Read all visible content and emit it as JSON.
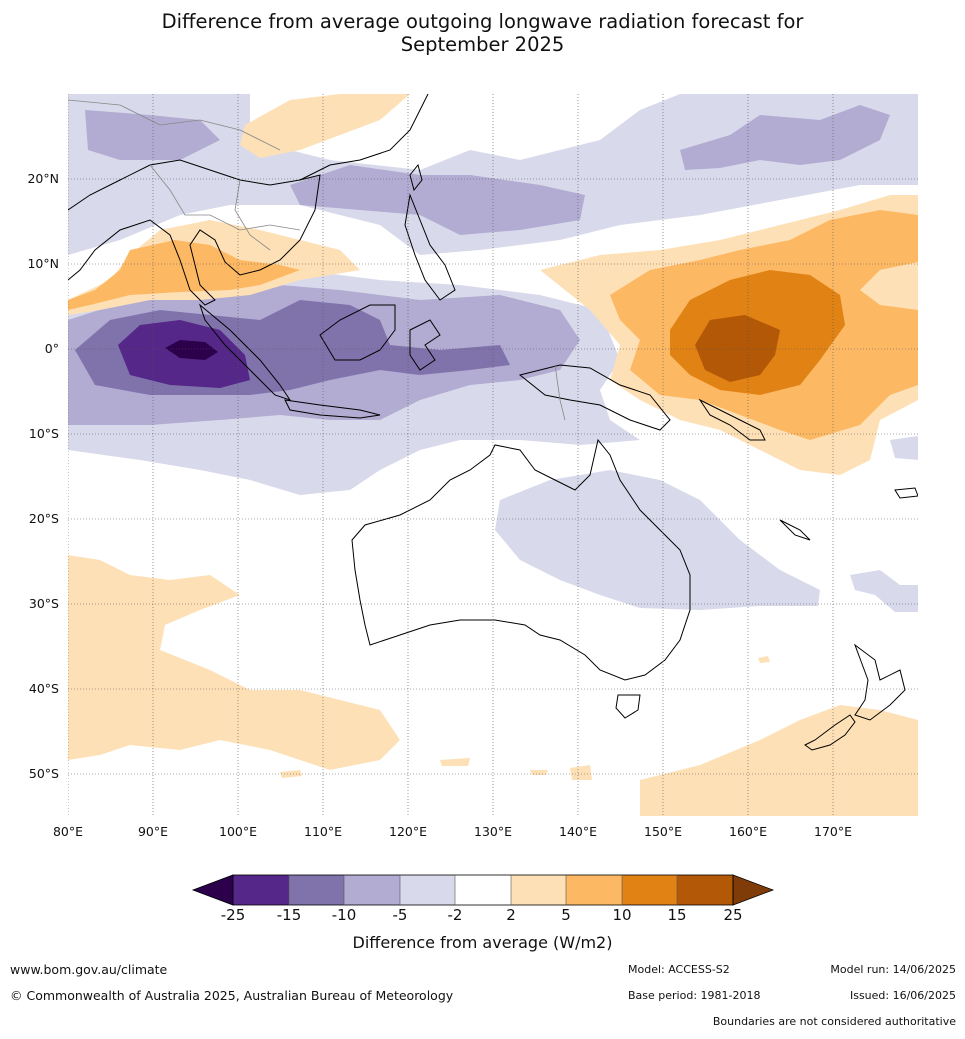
{
  "title_line1": "Difference from average outgoing longwave radiation forecast for",
  "title_line2": "September 2025",
  "lat_labels": [
    "20°N",
    "10°N",
    "0°",
    "10°S",
    "20°S",
    "30°S",
    "40°S",
    "50°S"
  ],
  "lon_labels": [
    "80°E",
    "90°E",
    "100°E",
    "110°E",
    "120°E",
    "130°E",
    "140°E",
    "150°E",
    "160°E",
    "170°E"
  ],
  "colorbar": {
    "ticks": [
      "-25",
      "-15",
      "-10",
      "-5",
      "-2",
      "2",
      "5",
      "10",
      "15",
      "25"
    ],
    "colors": [
      "#2d004b",
      "#542788",
      "#8073ac",
      "#b2abd2",
      "#d8daeb",
      "#ffffff",
      "#fee0b6",
      "#fdb863",
      "#e08214",
      "#b35806",
      "#7f3b08"
    ],
    "label": "Difference from average (W/m2)"
  },
  "footer": {
    "website": "www.bom.gov.au/climate",
    "copyright": "© Commonwealth of Australia 2025, Australian Bureau of Meteorology",
    "model": "Model: ACCESS-S2",
    "base_period": "Base period: 1981-2018",
    "model_run": "Model run: 14/06/2025",
    "issued": "Issued: 16/06/2025",
    "boundaries_note": "Boundaries are not considered authoritative"
  }
}
